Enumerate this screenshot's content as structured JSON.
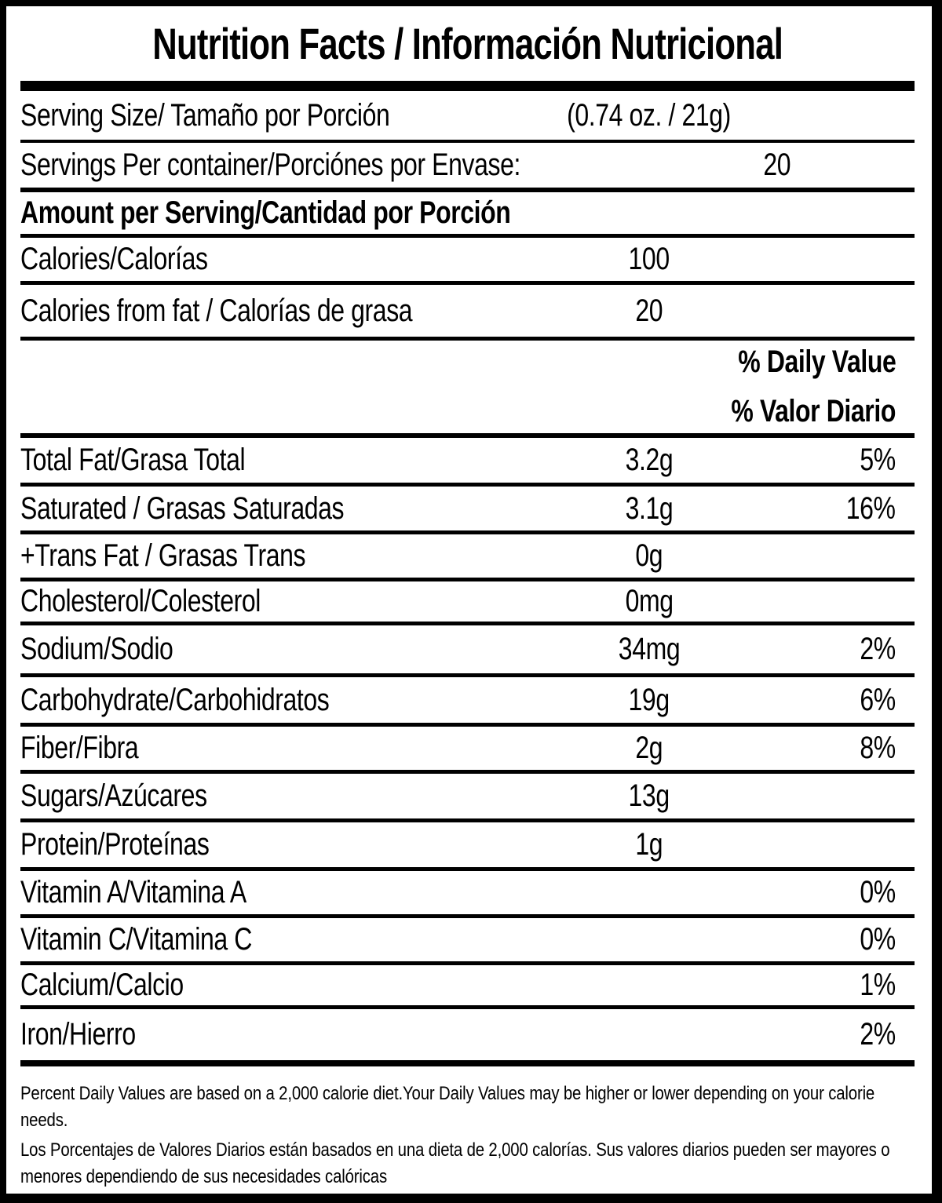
{
  "title": "Nutrition Facts / Información Nutricional",
  "serving_size": {
    "label": "Serving Size/ Tamaño por Porción",
    "value": "(0.74 oz. / 21g)"
  },
  "servings_per_container": {
    "label": "Servings Per container/Porciónes por Envase:",
    "value": "20"
  },
  "amount_per_serving_header": "Amount per Serving/Cantidad por Porción",
  "calories": {
    "label": "Calories/Calorías",
    "value": "100"
  },
  "calories_from_fat": {
    "label": "Calories from fat / Calorías de grasa",
    "value": "20"
  },
  "daily_value_header": {
    "english": "% Daily Value",
    "spanish": "% Valor Diario"
  },
  "nutrients": [
    {
      "label": "Total Fat/Grasa Total",
      "amount": "3.2g",
      "dv": "5%"
    },
    {
      "label": "Saturated / Grasas Saturadas",
      "amount": "3.1g",
      "dv": "16%"
    },
    {
      "label": "+Trans Fat / Grasas Trans",
      "amount": "0g",
      "dv": ""
    },
    {
      "label": "Cholesterol/Colesterol",
      "amount": "0mg",
      "dv": ""
    },
    {
      "label": "Sodium/Sodio",
      "amount": "34mg",
      "dv": "2%"
    },
    {
      "label": "Carbohydrate/Carbohidratos",
      "amount": "19g",
      "dv": "6%"
    },
    {
      "label": "Fiber/Fibra",
      "amount": "2g",
      "dv": "8%"
    },
    {
      "label": "Sugars/Azúcares",
      "amount": "13g",
      "dv": ""
    },
    {
      "label": "Protein/Proteínas",
      "amount": "1g",
      "dv": ""
    },
    {
      "label": "Vitamin A/Vitamina A",
      "amount": "",
      "dv": "0%"
    },
    {
      "label": "Vitamin C/Vitamina C",
      "amount": "",
      "dv": "0%"
    },
    {
      "label": "Calcium/Calcio",
      "amount": "",
      "dv": "1%"
    },
    {
      "label": "Iron/Hierro",
      "amount": "",
      "dv": "2%"
    }
  ],
  "footnotes": {
    "english": "Percent Daily Values are based on a 2,000 calorie diet.Your Daily Values may be higher or lower depending on your calorie needs.",
    "spanish": "Los Porcentajes de Valores Diarios están basados en una dieta de 2,000 calorías. Sus valores diarios pueden ser mayores o menores dependiendo de sus necesidades calóricas"
  },
  "colors": {
    "text": "#000000",
    "background": "#ffffff",
    "border": "#000000"
  }
}
